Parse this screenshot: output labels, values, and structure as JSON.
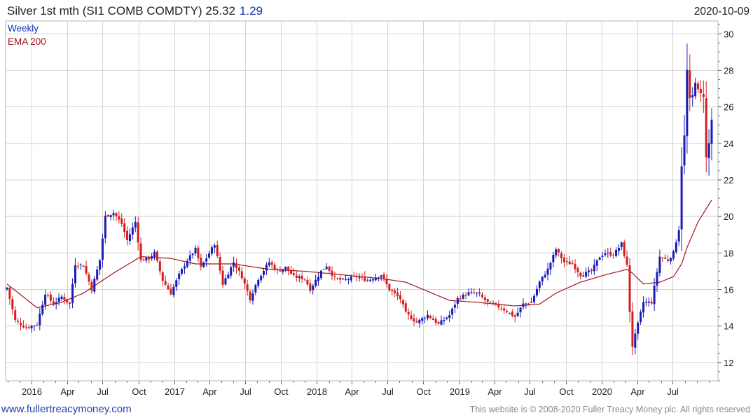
{
  "header": {
    "title": "Silver 1st mth (SI1 COMB COMDTY) 25.32",
    "change": "1.29",
    "date": "2020-10-09"
  },
  "legend": {
    "weekly": "Weekly",
    "ema": "EMA 200"
  },
  "footer": {
    "left": "www.fullertreacymoney.com",
    "right": "This website is © 2008-2020 Fuller Treacy Money plc. All rights reserved"
  },
  "colors": {
    "up": "#1a1ab8",
    "down": "#d41e1e",
    "ema": "#a0161c",
    "grid": "#d4d4d4",
    "title_blue": "#1a30b8"
  },
  "chart_data": {
    "type": "candlestick",
    "frequency": "weekly",
    "date_range": [
      "2015-10-30",
      "2020-10-09"
    ],
    "ylim": [
      11,
      30.7
    ],
    "yticks": [
      12,
      14,
      16,
      18,
      20,
      22,
      24,
      26,
      28,
      30
    ],
    "xticks": [
      {
        "label": "2016",
        "date": "2016-01-01"
      },
      {
        "label": "Apr",
        "date": "2016-04-01"
      },
      {
        "label": "Jul",
        "date": "2016-07-01"
      },
      {
        "label": "Oct",
        "date": "2016-10-01"
      },
      {
        "label": "2017",
        "date": "2017-01-01"
      },
      {
        "label": "Apr",
        "date": "2017-04-01"
      },
      {
        "label": "Jul",
        "date": "2017-07-01"
      },
      {
        "label": "Oct",
        "date": "2017-10-01"
      },
      {
        "label": "2018",
        "date": "2018-01-01"
      },
      {
        "label": "Apr",
        "date": "2018-04-01"
      },
      {
        "label": "Jul",
        "date": "2018-07-01"
      },
      {
        "label": "Oct",
        "date": "2018-10-01"
      },
      {
        "label": "2019",
        "date": "2019-01-01"
      },
      {
        "label": "Apr",
        "date": "2019-04-01"
      },
      {
        "label": "Jul",
        "date": "2019-07-01"
      },
      {
        "label": "Oct",
        "date": "2019-10-01"
      },
      {
        "label": "2020",
        "date": "2020-01-01"
      },
      {
        "label": "Apr",
        "date": "2020-04-01"
      },
      {
        "label": "Jul",
        "date": "2020-07-01"
      }
    ],
    "close_anchors": [
      [
        "2015-10-30",
        16.1
      ],
      [
        "2015-11-20",
        14.3
      ],
      [
        "2015-12-18",
        13.9
      ],
      [
        "2016-01-15",
        14.1
      ],
      [
        "2016-02-05",
        15.8
      ],
      [
        "2016-02-26",
        15.2
      ],
      [
        "2016-03-18",
        15.6
      ],
      [
        "2016-04-08",
        15.2
      ],
      [
        "2016-04-22",
        17.4
      ],
      [
        "2016-05-13",
        17.3
      ],
      [
        "2016-06-03",
        16.0
      ],
      [
        "2016-06-24",
        17.6
      ],
      [
        "2016-07-08",
        20.0
      ],
      [
        "2016-07-29",
        20.2
      ],
      [
        "2016-08-19",
        19.6
      ],
      [
        "2016-09-02",
        18.7
      ],
      [
        "2016-09-23",
        19.7
      ],
      [
        "2016-10-07",
        17.6
      ],
      [
        "2016-10-28",
        17.7
      ],
      [
        "2016-11-11",
        18.0
      ],
      [
        "2016-12-02",
        16.5
      ],
      [
        "2016-12-23",
        15.8
      ],
      [
        "2017-01-13",
        16.8
      ],
      [
        "2017-02-03",
        17.6
      ],
      [
        "2017-02-24",
        18.2
      ],
      [
        "2017-03-10",
        17.2
      ],
      [
        "2017-04-14",
        18.5
      ],
      [
        "2017-05-05",
        16.3
      ],
      [
        "2017-06-02",
        17.5
      ],
      [
        "2017-06-23",
        16.7
      ],
      [
        "2017-07-14",
        15.5
      ],
      [
        "2017-08-04",
        16.6
      ],
      [
        "2017-09-01",
        17.5
      ],
      [
        "2017-09-22",
        17.0
      ],
      [
        "2017-10-13",
        17.2
      ],
      [
        "2017-11-03",
        16.7
      ],
      [
        "2017-12-01",
        16.6
      ],
      [
        "2017-12-15",
        16.0
      ],
      [
        "2018-01-12",
        17.0
      ],
      [
        "2018-01-26",
        17.3
      ],
      [
        "2018-02-16",
        16.6
      ],
      [
        "2018-03-09",
        16.5
      ],
      [
        "2018-04-13",
        16.7
      ],
      [
        "2018-05-11",
        16.5
      ],
      [
        "2018-06-15",
        16.8
      ],
      [
        "2018-07-06",
        16.0
      ],
      [
        "2018-08-03",
        15.5
      ],
      [
        "2018-08-17",
        14.7
      ],
      [
        "2018-09-14",
        14.2
      ],
      [
        "2018-10-12",
        14.6
      ],
      [
        "2018-11-09",
        14.1
      ],
      [
        "2018-12-07",
        14.6
      ],
      [
        "2018-12-28",
        15.5
      ],
      [
        "2019-01-25",
        15.8
      ],
      [
        "2019-02-15",
        15.8
      ],
      [
        "2019-03-15",
        15.3
      ],
      [
        "2019-04-19",
        15.0
      ],
      [
        "2019-05-24",
        14.5
      ],
      [
        "2019-06-14",
        15.2
      ],
      [
        "2019-07-05",
        15.3
      ],
      [
        "2019-07-26",
        16.4
      ],
      [
        "2019-08-16",
        17.1
      ],
      [
        "2019-09-06",
        18.2
      ],
      [
        "2019-09-27",
        17.5
      ],
      [
        "2019-10-18",
        17.4
      ],
      [
        "2019-11-08",
        16.8
      ],
      [
        "2019-12-06",
        17.0
      ],
      [
        "2019-12-27",
        17.8
      ],
      [
        "2020-01-10",
        18.0
      ],
      [
        "2020-01-31",
        17.9
      ],
      [
        "2020-02-21",
        18.5
      ],
      [
        "2020-03-06",
        17.3
      ],
      [
        "2020-03-13",
        14.8
      ],
      [
        "2020-03-20",
        12.9
      ],
      [
        "2020-04-03",
        14.1
      ],
      [
        "2020-04-17",
        15.3
      ],
      [
        "2020-05-08",
        15.3
      ],
      [
        "2020-05-29",
        17.8
      ],
      [
        "2020-06-19",
        17.6
      ],
      [
        "2020-07-03",
        18.0
      ],
      [
        "2020-07-17",
        19.3
      ],
      [
        "2020-07-24",
        22.8
      ],
      [
        "2020-07-31",
        24.4
      ],
      [
        "2020-08-07",
        28.0
      ],
      [
        "2020-08-14",
        26.4
      ],
      [
        "2020-08-21",
        26.6
      ],
      [
        "2020-08-28",
        27.4
      ],
      [
        "2020-09-04",
        26.9
      ],
      [
        "2020-09-11",
        26.7
      ],
      [
        "2020-09-18",
        26.6
      ],
      [
        "2020-09-25",
        23.2
      ],
      [
        "2020-10-02",
        24.0
      ],
      [
        "2020-10-09",
        25.3
      ]
    ],
    "ema200_anchors": [
      [
        "2015-10-30",
        16.3
      ],
      [
        "2016-01-15",
        15.0
      ],
      [
        "2016-03-18",
        15.3
      ],
      [
        "2016-05-13",
        15.8
      ],
      [
        "2016-07-29",
        16.9
      ],
      [
        "2016-10-07",
        17.8
      ],
      [
        "2016-12-23",
        17.7
      ],
      [
        "2017-02-24",
        17.4
      ],
      [
        "2017-06-02",
        17.4
      ],
      [
        "2017-09-01",
        17.1
      ],
      [
        "2017-12-01",
        17.0
      ],
      [
        "2018-03-09",
        16.8
      ],
      [
        "2018-06-15",
        16.6
      ],
      [
        "2018-08-17",
        16.4
      ],
      [
        "2018-10-12",
        15.9
      ],
      [
        "2018-12-07",
        15.4
      ],
      [
        "2019-02-15",
        15.3
      ],
      [
        "2019-05-24",
        15.1
      ],
      [
        "2019-07-26",
        15.2
      ],
      [
        "2019-09-06",
        15.8
      ],
      [
        "2019-11-08",
        16.4
      ],
      [
        "2020-01-10",
        16.8
      ],
      [
        "2020-03-06",
        17.1
      ],
      [
        "2020-03-20",
        16.9
      ],
      [
        "2020-04-17",
        16.3
      ],
      [
        "2020-05-29",
        16.4
      ],
      [
        "2020-07-03",
        16.7
      ],
      [
        "2020-07-24",
        17.4
      ],
      [
        "2020-08-07",
        18.3
      ],
      [
        "2020-09-04",
        19.7
      ],
      [
        "2020-10-09",
        20.9
      ]
    ]
  }
}
